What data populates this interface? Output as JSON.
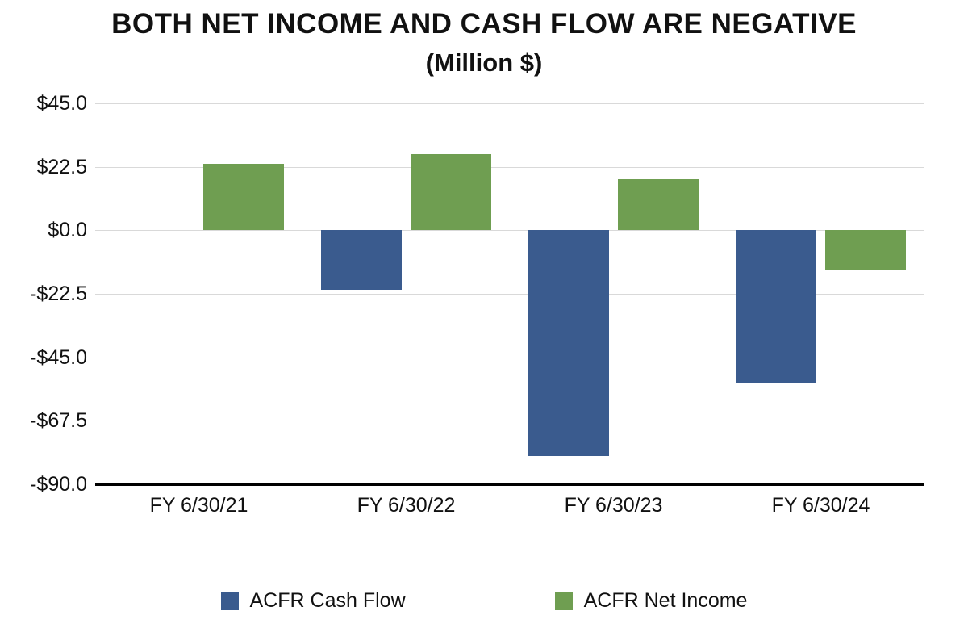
{
  "title": "BOTH NET INCOME AND CASH FLOW ARE NEGATIVE",
  "subtitle": "(Million $)",
  "colors": {
    "cash_flow": "#3a5b8e",
    "net_income": "#6f9e51",
    "grid": "#d9d9d9",
    "axis": "#000000",
    "background": "#ffffff"
  },
  "chart_data": {
    "type": "bar",
    "title": "BOTH NET INCOME AND CASH FLOW ARE NEGATIVE",
    "subtitle": "(Million $)",
    "categories": [
      "FY 6/30/21",
      "FY 6/30/22",
      "FY 6/30/23",
      "FY 6/30/24"
    ],
    "series": [
      {
        "name": "ACFR Cash Flow",
        "color": "#3a5b8e",
        "values": [
          0,
          -21,
          -80,
          -54
        ]
      },
      {
        "name": "ACFR Net Income",
        "color": "#6f9e51",
        "values": [
          23.5,
          27,
          18,
          -14
        ]
      }
    ],
    "ylim": [
      -90,
      45
    ],
    "yticks": [
      {
        "value": 45,
        "label": "$45.0"
      },
      {
        "value": 22.5,
        "label": "$22.5"
      },
      {
        "value": 0,
        "label": "$0.0"
      },
      {
        "value": -22.5,
        "label": "-$22.5"
      },
      {
        "value": -45,
        "label": "-$45.0"
      },
      {
        "value": -67.5,
        "label": "-$67.5"
      },
      {
        "value": -90,
        "label": "-$90.0"
      }
    ],
    "grid": true,
    "legend_position": "bottom",
    "xlabel": "",
    "ylabel": ""
  }
}
